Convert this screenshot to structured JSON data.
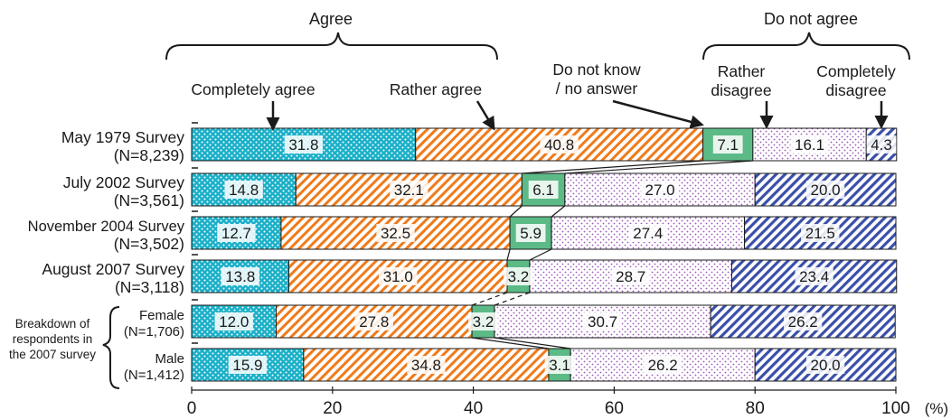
{
  "chart_data": {
    "type": "bar",
    "orientation": "horizontal",
    "stacked": true,
    "xlim": [
      0,
      100
    ],
    "x_ticks": [
      "0",
      "20",
      "40",
      "60",
      "80",
      "100"
    ],
    "x_unit": "(%)",
    "rows": [
      {
        "name": "May 1979 Survey",
        "n": "(N=8,239)"
      },
      {
        "name": "July 2002 Survey",
        "n": "(N=3,561)"
      },
      {
        "name": "November 2004 Survey",
        "n": "(N=3,502)"
      },
      {
        "name": "August 2007 Survey",
        "n": "(N=3,118)"
      },
      {
        "name": "Female",
        "n": "(N=1,706)"
      },
      {
        "name": "Male",
        "n": "(N=1,412)"
      }
    ],
    "breakdown_label": [
      "Breakdown of",
      "respondents in",
      "the 2007 survey"
    ],
    "series": [
      {
        "name": "Completely agree",
        "color": "#1ab0c8",
        "values": [
          31.8,
          14.8,
          12.7,
          13.8,
          12.0,
          15.9
        ],
        "labels": [
          "31.8",
          "14.8",
          "12.7",
          "13.8",
          "12.0",
          "15.9"
        ]
      },
      {
        "name": "Rather agree",
        "color": "#f07a1a",
        "values": [
          40.8,
          32.1,
          32.5,
          31.0,
          27.8,
          34.8
        ],
        "labels": [
          "40.8",
          "32.1",
          "32.5",
          "31.0",
          "27.8",
          "34.8"
        ]
      },
      {
        "name": "Do not know / no answer",
        "legend_lines": [
          "Do not know",
          "/ no answer"
        ],
        "color": "#5cba86",
        "values": [
          7.1,
          6.1,
          5.9,
          3.2,
          3.2,
          3.1
        ],
        "labels": [
          "7.1",
          "6.1",
          "5.9",
          "3.2",
          "3.2",
          "3.1"
        ]
      },
      {
        "name": "Rather disagree",
        "legend_lines": [
          "Rather",
          "disagree"
        ],
        "color": "#9a55b8",
        "values": [
          16.1,
          27.0,
          27.4,
          28.7,
          30.7,
          26.2
        ],
        "labels": [
          "16.1",
          "27.0",
          "27.4",
          "28.7",
          "30.7",
          "26.2"
        ]
      },
      {
        "name": "Completely disagree",
        "legend_lines": [
          "Completely",
          "disagree"
        ],
        "color": "#3a4fa8",
        "values": [
          4.3,
          20.0,
          21.5,
          23.4,
          26.2,
          20.0
        ],
        "labels": [
          "4.3",
          "20.0",
          "21.5",
          "23.4",
          "26.2",
          "20.0"
        ]
      }
    ],
    "groups": [
      {
        "label": "Agree"
      },
      {
        "label": "Do not agree"
      }
    ]
  }
}
